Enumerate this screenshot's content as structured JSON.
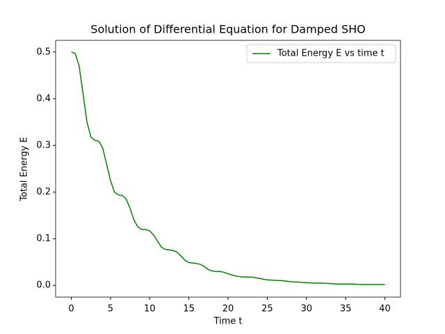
{
  "chart_data": {
    "type": "line",
    "title": "Solution of Differential Equation for Damped SHO",
    "xlabel": "Time t",
    "ylabel": "Total Energy E",
    "legend": "upper right",
    "x": [
      0,
      0.5,
      1,
      1.5,
      2,
      2.5,
      3,
      3.5,
      4,
      4.5,
      5,
      5.5,
      6,
      6.5,
      7,
      7.5,
      8,
      8.5,
      9,
      9.5,
      10,
      10.5,
      11,
      11.5,
      12,
      12.5,
      13,
      13.5,
      14,
      14.5,
      15,
      15.5,
      16,
      16.5,
      17,
      17.5,
      18,
      18.5,
      19,
      19.5,
      20,
      21,
      22,
      23,
      24,
      25,
      26,
      27,
      28,
      29,
      30,
      31,
      32,
      33,
      34,
      35,
      36,
      37,
      38,
      39,
      40
    ],
    "series": [
      {
        "name": "Total Energy E vs time t",
        "color": "#008000",
        "values": [
          0.5,
          0.497,
          0.47,
          0.41,
          0.35,
          0.318,
          0.311,
          0.309,
          0.295,
          0.26,
          0.225,
          0.2,
          0.194,
          0.193,
          0.185,
          0.165,
          0.14,
          0.125,
          0.12,
          0.12,
          0.117,
          0.108,
          0.095,
          0.082,
          0.077,
          0.076,
          0.075,
          0.071,
          0.063,
          0.054,
          0.049,
          0.048,
          0.047,
          0.045,
          0.04,
          0.034,
          0.031,
          0.03,
          0.03,
          0.028,
          0.025,
          0.02,
          0.018,
          0.018,
          0.015,
          0.012,
          0.011,
          0.01,
          0.008,
          0.007,
          0.006,
          0.005,
          0.005,
          0.004,
          0.003,
          0.003,
          0.003,
          0.002,
          0.002,
          0.002,
          0.002
        ]
      }
    ],
    "xlim": [
      -2,
      42
    ],
    "ylim": [
      -0.025,
      0.525
    ],
    "xticks": [
      0,
      5,
      10,
      15,
      20,
      25,
      30,
      35,
      40
    ],
    "yticks": [
      {
        "value": 0,
        "label": "0.0"
      },
      0.1,
      0.2,
      0.3,
      0.4,
      0.5
    ]
  }
}
